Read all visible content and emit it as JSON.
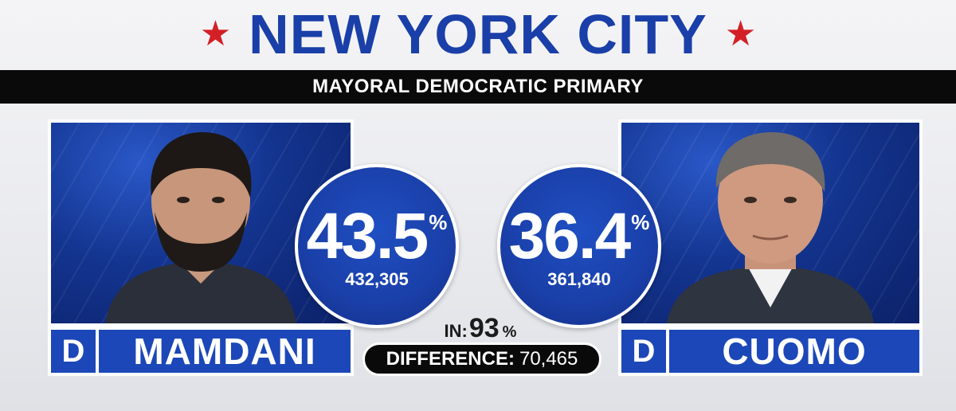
{
  "header": {
    "title": "NEW YORK CITY",
    "subtitle": "MAYORAL DEMOCRATIC PRIMARY",
    "star_color": "#d32027",
    "title_color": "#1a3fa8"
  },
  "candidates": [
    {
      "name": "MAMDANI",
      "party": "D",
      "percent": "43.5",
      "percent_sign": "%",
      "votes": "432,305"
    },
    {
      "name": "CUOMO",
      "party": "D",
      "percent": "36.4",
      "percent_sign": "%",
      "votes": "361,840"
    }
  ],
  "reporting": {
    "label": "IN:",
    "value": "93",
    "sign": "%"
  },
  "difference": {
    "label": "DIFFERENCE:",
    "value": "70,465"
  },
  "colors": {
    "brand_blue": "#1a3fa8",
    "bar_black": "#0a0a0a"
  }
}
